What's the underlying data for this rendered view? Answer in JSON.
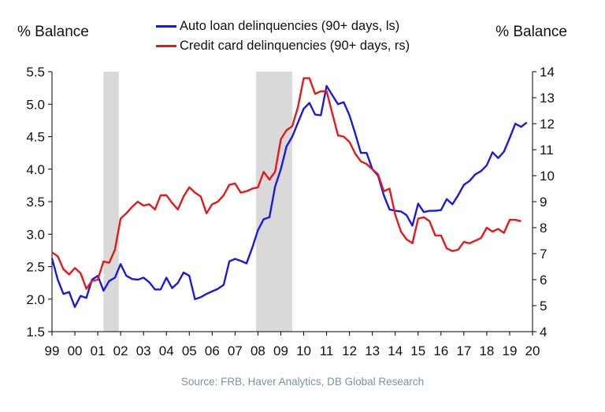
{
  "chart_data": {
    "type": "line",
    "ylabel_left": "% Balance",
    "ylabel_right": "% Balance",
    "source": "Source: FRB, Haver Analytics, DB Global Research",
    "x_tick_labels": [
      "99",
      "00",
      "01",
      "02",
      "03",
      "04",
      "05",
      "06",
      "07",
      "08",
      "09",
      "10",
      "11",
      "12",
      "13",
      "14",
      "15",
      "16",
      "17",
      "18",
      "19",
      "20"
    ],
    "xlim": [
      1999,
      2020
    ],
    "ylim_left": [
      1.5,
      5.5
    ],
    "ylim_right": [
      4,
      14
    ],
    "yticks_left": [
      "1.5",
      "2.0",
      "2.5",
      "3.0",
      "3.5",
      "4.0",
      "4.5",
      "5.0",
      "5.5"
    ],
    "yticks_right": [
      "4",
      "5",
      "6",
      "7",
      "8",
      "9",
      "10",
      "11",
      "12",
      "13",
      "14"
    ],
    "grid": false,
    "legend_position": "top-center",
    "recessions": [
      [
        2001.25,
        2001.92
      ],
      [
        2007.92,
        2009.5
      ]
    ],
    "series": [
      {
        "name": "Auto loan delinquencies (90+ days, ls)",
        "axis": "left",
        "color": "#1a1adf",
        "points": [
          [
            1999.0,
            2.63
          ],
          [
            1999.25,
            2.3
          ],
          [
            1999.5,
            2.08
          ],
          [
            1999.75,
            2.11
          ],
          [
            2000.0,
            1.88
          ],
          [
            2000.25,
            2.05
          ],
          [
            2000.5,
            2.02
          ],
          [
            2000.75,
            2.3
          ],
          [
            2001.0,
            2.36
          ],
          [
            2001.25,
            2.13
          ],
          [
            2001.5,
            2.28
          ],
          [
            2001.75,
            2.33
          ],
          [
            2002.0,
            2.54
          ],
          [
            2002.25,
            2.36
          ],
          [
            2002.5,
            2.31
          ],
          [
            2002.75,
            2.3
          ],
          [
            2003.0,
            2.33
          ],
          [
            2003.25,
            2.26
          ],
          [
            2003.5,
            2.15
          ],
          [
            2003.75,
            2.15
          ],
          [
            2004.0,
            2.33
          ],
          [
            2004.25,
            2.17
          ],
          [
            2004.5,
            2.25
          ],
          [
            2004.75,
            2.41
          ],
          [
            2005.0,
            2.36
          ],
          [
            2005.25,
            2.0
          ],
          [
            2005.5,
            2.03
          ],
          [
            2005.75,
            2.08
          ],
          [
            2006.0,
            2.12
          ],
          [
            2006.25,
            2.16
          ],
          [
            2006.5,
            2.22
          ],
          [
            2006.75,
            2.58
          ],
          [
            2007.0,
            2.62
          ],
          [
            2007.25,
            2.59
          ],
          [
            2007.5,
            2.55
          ],
          [
            2007.75,
            2.79
          ],
          [
            2008.0,
            3.06
          ],
          [
            2008.25,
            3.23
          ],
          [
            2008.5,
            3.26
          ],
          [
            2008.75,
            3.73
          ],
          [
            2009.0,
            4.0
          ],
          [
            2009.25,
            4.35
          ],
          [
            2009.5,
            4.5
          ],
          [
            2009.75,
            4.72
          ],
          [
            2010.0,
            4.93
          ],
          [
            2010.25,
            5.02
          ],
          [
            2010.5,
            4.84
          ],
          [
            2010.75,
            4.83
          ],
          [
            2011.0,
            5.28
          ],
          [
            2011.25,
            5.14
          ],
          [
            2011.5,
            5.0
          ],
          [
            2011.75,
            5.03
          ],
          [
            2012.0,
            4.83
          ],
          [
            2012.25,
            4.55
          ],
          [
            2012.5,
            4.25
          ],
          [
            2012.75,
            4.25
          ],
          [
            2013.0,
            4.0
          ],
          [
            2013.25,
            3.9
          ],
          [
            2013.5,
            3.6
          ],
          [
            2013.75,
            3.38
          ],
          [
            2014.0,
            3.36
          ],
          [
            2014.25,
            3.35
          ],
          [
            2014.5,
            3.29
          ],
          [
            2014.75,
            3.13
          ],
          [
            2015.0,
            3.47
          ],
          [
            2015.25,
            3.34
          ],
          [
            2015.5,
            3.36
          ],
          [
            2015.75,
            3.36
          ],
          [
            2016.0,
            3.37
          ],
          [
            2016.25,
            3.54
          ],
          [
            2016.5,
            3.46
          ],
          [
            2016.75,
            3.6
          ],
          [
            2017.0,
            3.76
          ],
          [
            2017.25,
            3.82
          ],
          [
            2017.5,
            3.92
          ],
          [
            2017.75,
            3.97
          ],
          [
            2018.0,
            4.06
          ],
          [
            2018.25,
            4.26
          ],
          [
            2018.5,
            4.17
          ],
          [
            2018.75,
            4.27
          ],
          [
            2019.0,
            4.48
          ],
          [
            2019.25,
            4.7
          ],
          [
            2019.5,
            4.65
          ],
          [
            2019.75,
            4.72
          ]
        ]
      },
      {
        "name": "Credit card delinquencies (90+ days, rs)",
        "axis": "right",
        "color": "#e51919",
        "points": [
          [
            1999.0,
            7.05
          ],
          [
            1999.25,
            6.9
          ],
          [
            1999.5,
            6.4
          ],
          [
            1999.75,
            6.2
          ],
          [
            2000.0,
            6.45
          ],
          [
            2000.25,
            6.25
          ],
          [
            2000.5,
            5.65
          ],
          [
            2000.75,
            5.95
          ],
          [
            2001.0,
            6.0
          ],
          [
            2001.25,
            6.7
          ],
          [
            2001.5,
            6.65
          ],
          [
            2001.75,
            7.15
          ],
          [
            2002.0,
            8.35
          ],
          [
            2002.25,
            8.55
          ],
          [
            2002.5,
            8.8
          ],
          [
            2002.75,
            9.0
          ],
          [
            2003.0,
            8.85
          ],
          [
            2003.25,
            8.9
          ],
          [
            2003.5,
            8.7
          ],
          [
            2003.75,
            9.25
          ],
          [
            2004.0,
            9.25
          ],
          [
            2004.25,
            8.95
          ],
          [
            2004.5,
            8.7
          ],
          [
            2004.75,
            9.2
          ],
          [
            2005.0,
            9.55
          ],
          [
            2005.25,
            9.35
          ],
          [
            2005.5,
            9.2
          ],
          [
            2005.75,
            8.55
          ],
          [
            2006.0,
            8.9
          ],
          [
            2006.25,
            9.0
          ],
          [
            2006.5,
            9.25
          ],
          [
            2006.75,
            9.65
          ],
          [
            2007.0,
            9.7
          ],
          [
            2007.25,
            9.35
          ],
          [
            2007.5,
            9.4
          ],
          [
            2007.75,
            9.5
          ],
          [
            2008.0,
            9.55
          ],
          [
            2008.25,
            10.15
          ],
          [
            2008.5,
            9.85
          ],
          [
            2008.75,
            10.15
          ],
          [
            2009.0,
            11.4
          ],
          [
            2009.25,
            11.75
          ],
          [
            2009.5,
            11.9
          ],
          [
            2009.75,
            12.65
          ],
          [
            2010.0,
            13.75
          ],
          [
            2010.25,
            13.75
          ],
          [
            2010.5,
            13.15
          ],
          [
            2010.75,
            13.25
          ],
          [
            2011.0,
            13.25
          ],
          [
            2011.25,
            12.4
          ],
          [
            2011.5,
            11.55
          ],
          [
            2011.75,
            11.5
          ],
          [
            2012.0,
            11.3
          ],
          [
            2012.25,
            10.85
          ],
          [
            2012.5,
            10.55
          ],
          [
            2012.75,
            10.45
          ],
          [
            2013.0,
            10.25
          ],
          [
            2013.25,
            10.05
          ],
          [
            2013.5,
            9.4
          ],
          [
            2013.75,
            9.5
          ],
          [
            2014.0,
            8.5
          ],
          [
            2014.25,
            7.85
          ],
          [
            2014.5,
            7.55
          ],
          [
            2014.75,
            7.4
          ],
          [
            2015.0,
            8.35
          ],
          [
            2015.25,
            8.4
          ],
          [
            2015.5,
            8.25
          ],
          [
            2015.75,
            7.7
          ],
          [
            2016.0,
            7.7
          ],
          [
            2016.25,
            7.2
          ],
          [
            2016.5,
            7.1
          ],
          [
            2016.75,
            7.15
          ],
          [
            2017.0,
            7.45
          ],
          [
            2017.25,
            7.4
          ],
          [
            2017.5,
            7.5
          ],
          [
            2017.75,
            7.6
          ],
          [
            2018.0,
            8.0
          ],
          [
            2018.25,
            7.85
          ],
          [
            2018.5,
            7.95
          ],
          [
            2018.75,
            7.8
          ],
          [
            2019.0,
            8.3
          ],
          [
            2019.25,
            8.3
          ],
          [
            2019.5,
            8.25
          ]
        ]
      }
    ]
  }
}
